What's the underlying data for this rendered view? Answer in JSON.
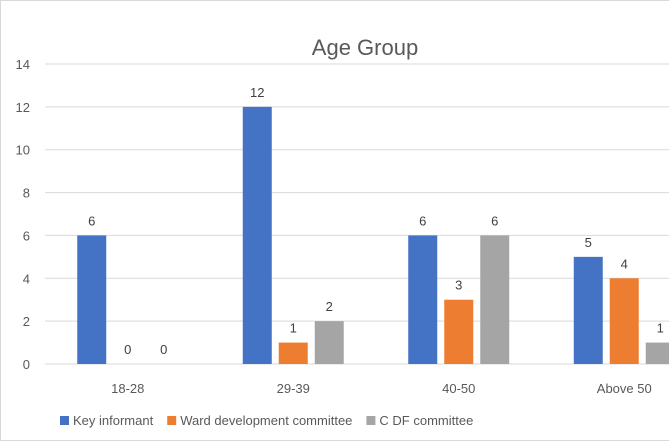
{
  "chart_data": {
    "type": "bar",
    "title": "Age Group",
    "xlabel": "",
    "ylabel": "",
    "categories": [
      "18-28",
      "29-39",
      "40-50",
      "Above 50"
    ],
    "series": [
      {
        "name": "Key informant",
        "values": [
          6,
          12,
          6,
          5
        ],
        "color": "#4472C4"
      },
      {
        "name": "Ward development committee",
        "values": [
          0,
          1,
          3,
          4
        ],
        "color": "#ED7D31"
      },
      {
        "name": "C DF committee",
        "values": [
          0,
          2,
          6,
          1
        ],
        "color": "#A5A5A5"
      }
    ],
    "ylim": [
      0,
      14
    ],
    "yticks": [
      0,
      2,
      4,
      6,
      8,
      10,
      12,
      14
    ],
    "grid": true,
    "legend_position": "bottom-left"
  }
}
